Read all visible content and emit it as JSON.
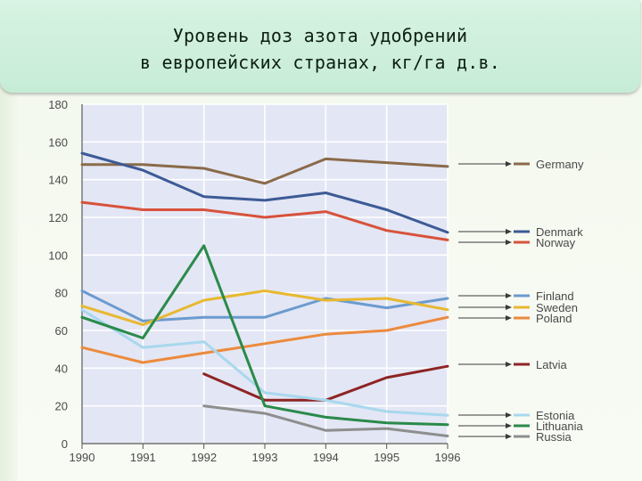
{
  "title_line1": "Уровень доз азота удобрений",
  "title_line2": "в европейских странах, кг/га д.в.",
  "chart_data": {
    "type": "line",
    "x": [
      1990,
      1991,
      1992,
      1993,
      1994,
      1995,
      1996
    ],
    "xticks": [
      "1990",
      "1991",
      "1992",
      "1993",
      "1994",
      "1995",
      "1996"
    ],
    "ylim": [
      0,
      180
    ],
    "yticks": [
      0,
      20,
      40,
      60,
      80,
      100,
      120,
      140,
      160,
      180
    ],
    "grid": true,
    "legend_position": "right",
    "series": [
      {
        "name": "Germany",
        "color": "#8a6a4a",
        "values": [
          148,
          148,
          146,
          138,
          151,
          149,
          147
        ]
      },
      {
        "name": "Denmark",
        "color": "#3c5a96",
        "values": [
          154,
          145,
          131,
          129,
          133,
          124,
          112
        ]
      },
      {
        "name": "Norway",
        "color": "#d8523c",
        "values": [
          128,
          124,
          124,
          120,
          123,
          113,
          108
        ]
      },
      {
        "name": "Finland",
        "color": "#6b9bcf",
        "values": [
          81,
          65,
          67,
          67,
          77,
          72,
          77
        ]
      },
      {
        "name": "Sweden",
        "color": "#e8b830",
        "values": [
          73,
          63,
          76,
          81,
          76,
          77,
          71
        ]
      },
      {
        "name": "Poland",
        "color": "#ec8a3c",
        "values": [
          51,
          43,
          48,
          53,
          58,
          60,
          67
        ]
      },
      {
        "name": "Latvia",
        "color": "#8e2424",
        "values": [
          null,
          null,
          37,
          23,
          23,
          35,
          41
        ]
      },
      {
        "name": "Estonia",
        "color": "#a8d8ee",
        "values": [
          71,
          51,
          54,
          27,
          23,
          17,
          15
        ]
      },
      {
        "name": "Lithuania",
        "color": "#2a8a4a",
        "values": [
          67,
          56,
          105,
          20,
          14,
          11,
          10
        ]
      },
      {
        "name": "Russia",
        "color": "#8e8e8e",
        "values": [
          null,
          null,
          20,
          16,
          7,
          8,
          4
        ]
      }
    ]
  }
}
